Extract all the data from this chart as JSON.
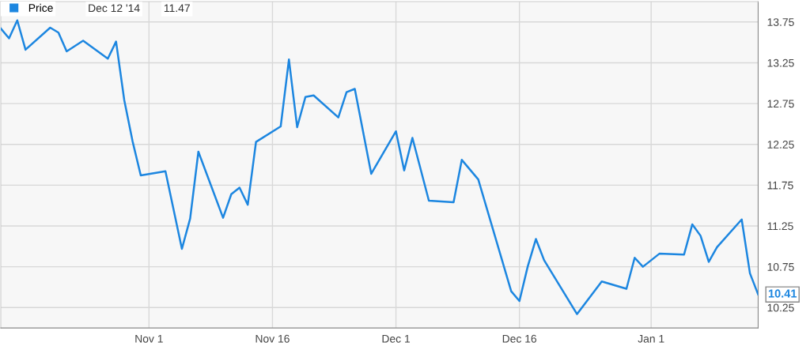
{
  "chart_data": {
    "type": "line",
    "x": [
      "2014-10-14",
      "2014-10-15",
      "2014-10-16",
      "2014-10-17",
      "2014-10-20",
      "2014-10-21",
      "2014-10-22",
      "2014-10-24",
      "2014-10-27",
      "2014-10-28",
      "2014-10-29",
      "2014-10-30",
      "2014-10-31",
      "2014-11-03",
      "2014-11-05",
      "2014-11-06",
      "2014-11-07",
      "2014-11-10",
      "2014-11-11",
      "2014-11-12",
      "2014-11-13",
      "2014-11-14",
      "2014-11-17",
      "2014-11-18",
      "2014-11-19",
      "2014-11-20",
      "2014-11-21",
      "2014-11-24",
      "2014-11-25",
      "2014-11-26",
      "2014-11-28",
      "2014-12-01",
      "2014-12-02",
      "2014-12-03",
      "2014-12-05",
      "2014-12-08",
      "2014-12-09",
      "2014-12-11",
      "2014-12-15",
      "2014-12-16",
      "2014-12-17",
      "2014-12-18",
      "2014-12-19",
      "2014-12-23",
      "2014-12-26",
      "2014-12-29",
      "2014-12-30",
      "2014-12-31",
      "2015-01-02",
      "2015-01-05",
      "2015-01-06",
      "2015-01-07",
      "2015-01-08",
      "2015-01-09",
      "2015-01-12",
      "2015-01-13",
      "2015-01-14"
    ],
    "series": [
      {
        "name": "Price",
        "color": "#1c86e0",
        "values": [
          13.67,
          13.55,
          13.77,
          13.41,
          13.68,
          13.62,
          13.39,
          13.52,
          13.3,
          13.51,
          12.79,
          12.29,
          11.87,
          11.92,
          10.97,
          11.34,
          12.16,
          11.35,
          11.64,
          11.72,
          11.51,
          12.28,
          12.47,
          13.29,
          12.46,
          12.83,
          12.85,
          12.58,
          12.89,
          12.93,
          11.89,
          12.41,
          11.93,
          12.33,
          11.56,
          11.54,
          12.06,
          11.82,
          10.45,
          10.33,
          10.75,
          11.09,
          10.83,
          10.17,
          10.57,
          10.48,
          10.86,
          10.75,
          10.91,
          10.9,
          11.27,
          11.13,
          10.81,
          10.99,
          11.33,
          10.67,
          10.41
        ]
      }
    ],
    "xlim": [
      "2014-10-14",
      "2015-01-14"
    ],
    "xticks": [
      {
        "value": "2014-11-01",
        "label": "Nov 1"
      },
      {
        "value": "2014-11-16",
        "label": "Nov 16"
      },
      {
        "value": "2014-12-01",
        "label": "Dec 1"
      },
      {
        "value": "2014-12-16",
        "label": "Dec 16"
      },
      {
        "value": "2015-01-01",
        "label": "Jan 1"
      }
    ],
    "ylim": [
      10.0,
      14.0
    ],
    "yticks": [
      {
        "value": 10.25,
        "label": "10.25"
      },
      {
        "value": 10.75,
        "label": "10.75"
      },
      {
        "value": 11.25,
        "label": "11.25"
      },
      {
        "value": 11.75,
        "label": "11.75"
      },
      {
        "value": 12.25,
        "label": "12.25"
      },
      {
        "value": 12.75,
        "label": "12.75"
      },
      {
        "value": 13.25,
        "label": "13.25"
      },
      {
        "value": 13.75,
        "label": "13.75"
      }
    ],
    "grid": true,
    "legend": "top left",
    "marker": "none",
    "line_style": "solid",
    "annotations": [
      "Dec 12 '14",
      "11.47",
      {
        "text": "10.41",
        "x": "2015-01-14",
        "y": 10.41
      }
    ]
  }
}
